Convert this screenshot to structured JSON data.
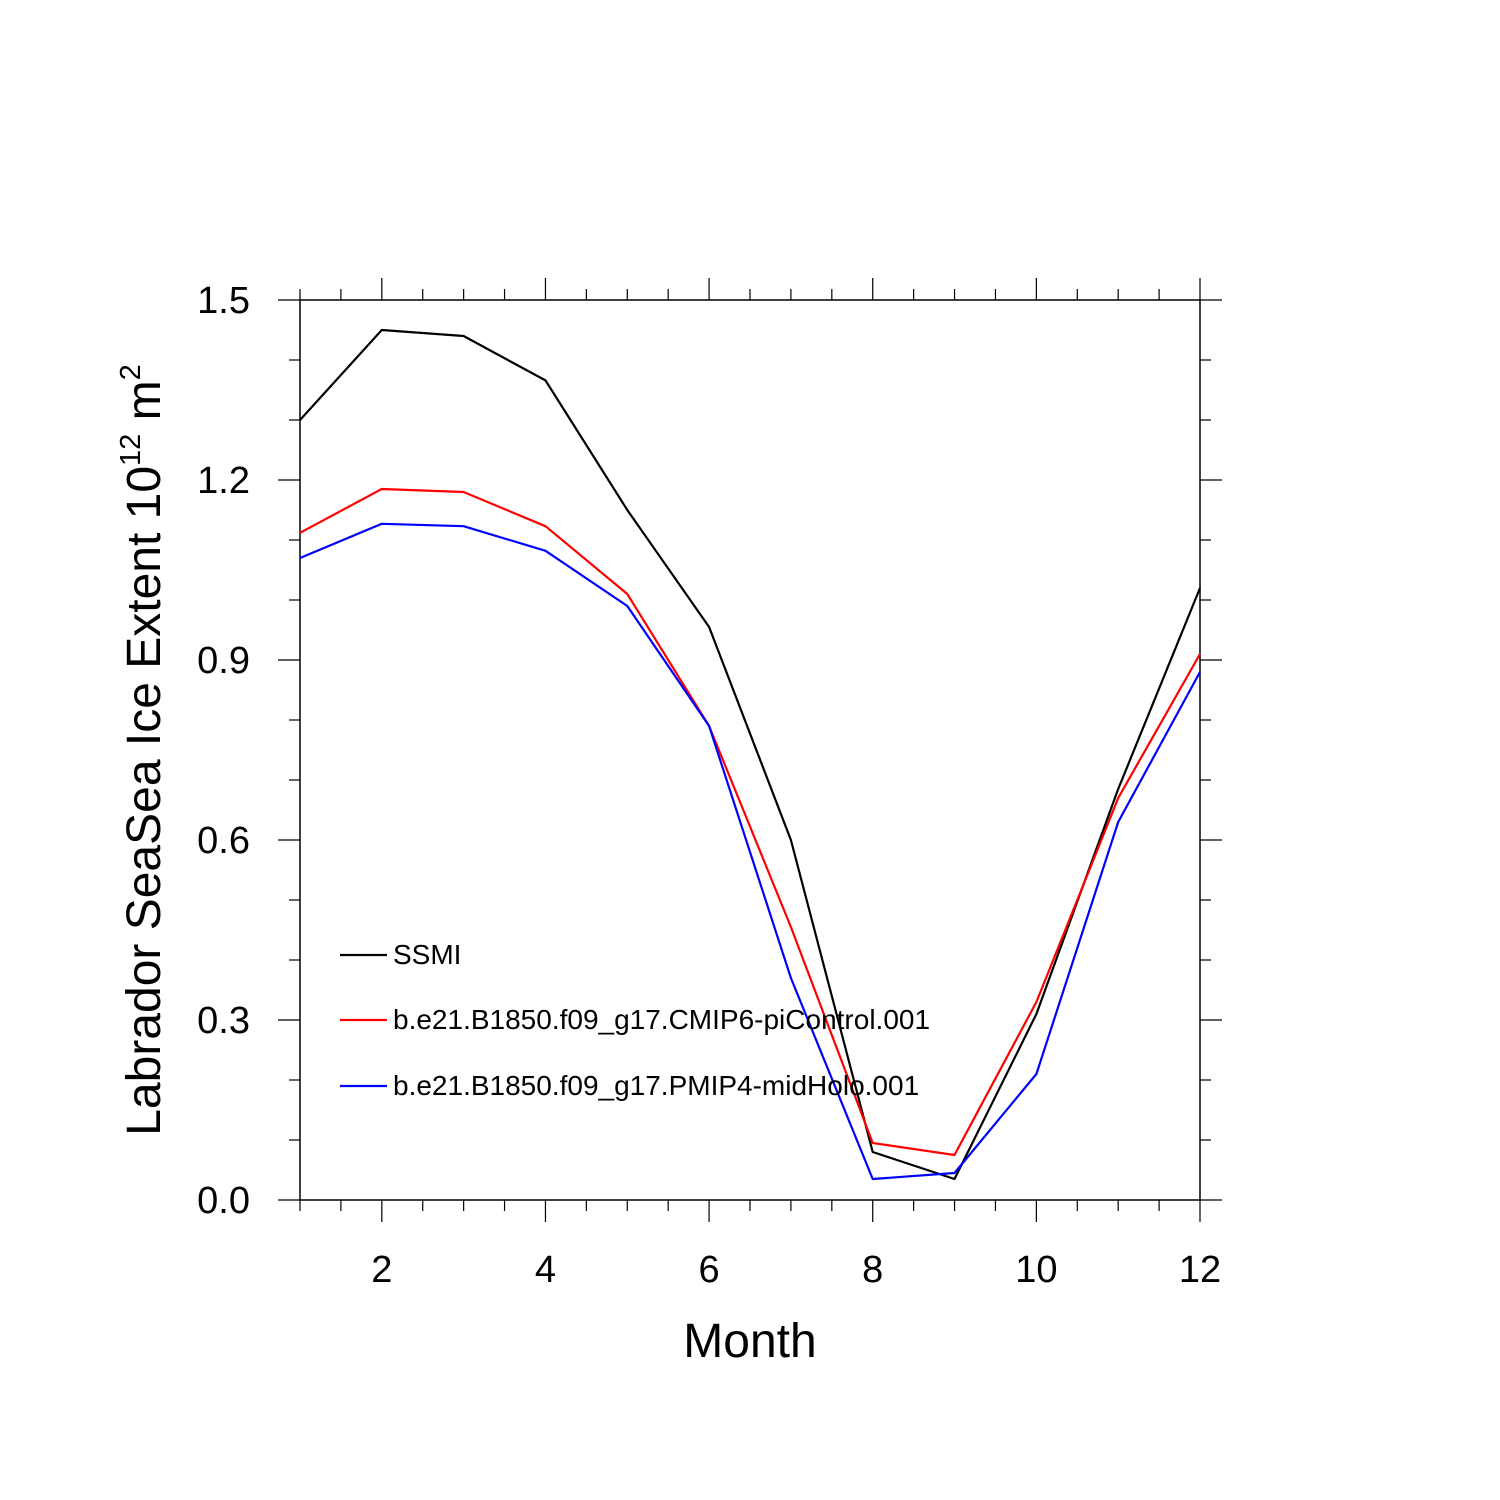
{
  "chart_data": {
    "type": "line",
    "title": "",
    "xlabel": "Month",
    "ylabel": "Labrador SeaSea Ice Extent 10",
    "ylabel_exponent": "12",
    "ylabel_unit": " m",
    "ylabel_unit_exponent": "2",
    "xlim": [
      1,
      12
    ],
    "ylim": [
      0,
      1.5
    ],
    "x_major_ticks": [
      2,
      4,
      6,
      8,
      10,
      12
    ],
    "x_tick_labels": [
      "2",
      "4",
      "6",
      "8",
      "10",
      "12"
    ],
    "y_major_ticks": [
      0,
      0.3,
      0.6,
      0.9,
      1.2,
      1.5
    ],
    "y_tick_labels": [
      "0.0",
      "0.3",
      "0.6",
      "0.9",
      "1.2",
      "1.5"
    ],
    "grid": false,
    "legend_position": "lower-left",
    "x": [
      1,
      2,
      3,
      4,
      5,
      6,
      7,
      8,
      9,
      10,
      11,
      12
    ],
    "series": [
      {
        "name": "SSMI",
        "color": "#000000",
        "values": [
          1.3,
          1.45,
          1.44,
          1.366,
          1.15,
          0.955,
          0.6,
          0.08,
          0.035,
          0.31,
          0.685,
          1.02
        ]
      },
      {
        "name": "b.e21.B1850.f09_g17.CMIP6-piControl.001",
        "color": "#ff0000",
        "values": [
          1.112,
          1.185,
          1.18,
          1.123,
          1.01,
          0.79,
          0.455,
          0.095,
          0.075,
          0.33,
          0.67,
          0.91
        ]
      },
      {
        "name": "b.e21.B1850.f09_g17.PMIP4-midHolo.001",
        "color": "#0000ff",
        "values": [
          1.07,
          1.127,
          1.123,
          1.082,
          0.99,
          0.79,
          0.37,
          0.035,
          0.045,
          0.21,
          0.63,
          0.88
        ]
      }
    ]
  }
}
